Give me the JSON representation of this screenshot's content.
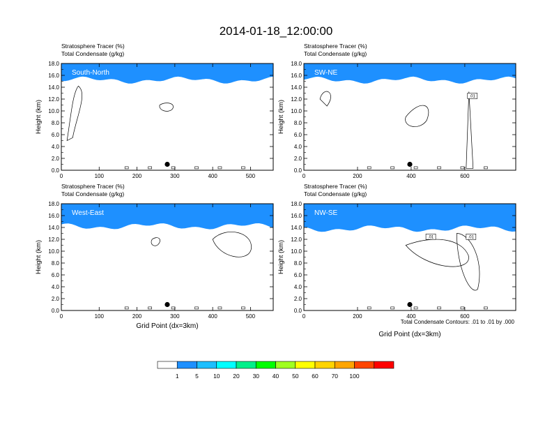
{
  "title": "2014-01-18_12:00:00",
  "colorbar": {
    "levels": [
      "1",
      "5",
      "10",
      "20",
      "30",
      "40",
      "50",
      "60",
      "70",
      "100"
    ],
    "colors": [
      "#ffffff",
      "#1e90ff",
      "#1ebfff",
      "#00ffff",
      "#00f08a",
      "#00ff00",
      "#a0ff20",
      "#ffff00",
      "#ffd400",
      "#ffa500",
      "#ff4500",
      "#ff0000"
    ]
  },
  "contour_note": "Total Condensate Contours: .01 to .01 by .000",
  "chart_data": [
    {
      "type": "contour",
      "panel": "South-North",
      "subtitle_lines": [
        "Stratosphere Tracer   (%)",
        "Total Condensate   (g/kg)"
      ],
      "label": "South-North",
      "ylabel": "Height (km)",
      "xlabel": "",
      "ylim": [
        0,
        18
      ],
      "xlim": [
        0,
        560
      ],
      "yticks": [
        "0.0",
        "2.0",
        "4.0",
        "6.0",
        "8.0",
        "10.0",
        "12.0",
        "14.0",
        "16.0",
        "18.0"
      ],
      "xticks": [
        "0",
        "100",
        "200",
        "300",
        "400",
        "500"
      ],
      "dot_x": 280,
      "tracer_base_km": 15.2,
      "contour_labels": []
    },
    {
      "type": "contour",
      "panel": "SW-NE",
      "subtitle_lines": [
        "Stratosphere Tracer   (%)",
        "Total Condensate   (g/kg)"
      ],
      "label": "SW-NE",
      "ylabel": "Height (km)",
      "xlabel": "",
      "ylim": [
        0,
        18
      ],
      "xlim": [
        0,
        790
      ],
      "yticks": [
        "0.0",
        "2.0",
        "4.0",
        "6.0",
        "8.0",
        "10.0",
        "12.0",
        "14.0",
        "16.0",
        "18.0"
      ],
      "xticks": [
        "0",
        "200",
        "400",
        "600"
      ],
      "dot_x": 395,
      "tracer_base_km": 15.2,
      "contour_labels": [
        ".01"
      ]
    },
    {
      "type": "contour",
      "panel": "West-East",
      "subtitle_lines": [
        "Stratosphere Tracer   (%)",
        "Total Condensate   (g/kg)"
      ],
      "label": "West-East",
      "ylabel": "Height (km)",
      "xlabel": "Grid Point (dx=3km)",
      "ylim": [
        0,
        18
      ],
      "xlim": [
        0,
        560
      ],
      "yticks": [
        "0.0",
        "2.0",
        "4.0",
        "6.0",
        "8.0",
        "10.0",
        "12.0",
        "14.0",
        "16.0",
        "18.0"
      ],
      "xticks": [
        "0",
        "100",
        "200",
        "300",
        "400",
        "500"
      ],
      "dot_x": 280,
      "tracer_base_km": 14.2,
      "contour_labels": []
    },
    {
      "type": "contour",
      "panel": "NW-SE",
      "subtitle_lines": [
        "Stratosphere Tracer   (%)",
        "Total Condensate   (g/kg)"
      ],
      "label": "NW-SE",
      "ylabel": "Height (km)",
      "xlabel": "Grid Point (dx=3km)",
      "ylim": [
        0,
        18
      ],
      "xlim": [
        0,
        790
      ],
      "yticks": [
        "0.0",
        "2.0",
        "4.0",
        "6.0",
        "8.0",
        "10.0",
        "12.0",
        "14.0",
        "16.0",
        "18.0"
      ],
      "xticks": [
        "0",
        "200",
        "400",
        "600"
      ],
      "dot_x": 395,
      "tracer_base_km": 13.8,
      "contour_labels": [
        ".01",
        ".01"
      ]
    }
  ]
}
